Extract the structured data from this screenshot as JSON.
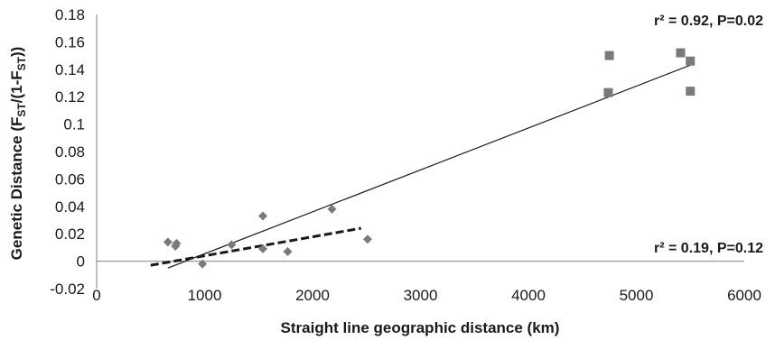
{
  "chart_data": {
    "type": "scatter",
    "xlabel": "Straight line geographic distance (km)",
    "ylabel": {
      "prefix": "Genetic Distance (F",
      "sub1": "ST",
      "mid": "/(1-F",
      "sub2": "ST",
      "suffix": "))"
    },
    "xlim": [
      0,
      6000
    ],
    "ylim": [
      -0.02,
      0.18
    ],
    "x_ticks": [
      "0",
      "1000",
      "2000",
      "3000",
      "4000",
      "5000",
      "6000"
    ],
    "y_ticks": [
      "-0.02",
      "0",
      "0.02",
      "0.04",
      "0.06",
      "0.08",
      "0.1",
      "0.12",
      "0.14",
      "0.16",
      "0.18"
    ],
    "grid": false,
    "series": [
      {
        "marker": "square",
        "color": "#7a7a7a",
        "points": [
          [
            4750,
            0.15
          ],
          [
            4740,
            0.123
          ],
          [
            5410,
            0.152
          ],
          [
            5500,
            0.146
          ],
          [
            5500,
            0.124
          ]
        ]
      },
      {
        "marker": "diamond",
        "color": "#7a7a7a",
        "points": [
          [
            660,
            0.014
          ],
          [
            730,
            0.011
          ],
          [
            740,
            0.013
          ],
          [
            980,
            -0.002
          ],
          [
            1250,
            0.012
          ],
          [
            1540,
            0.009
          ],
          [
            1540,
            0.033
          ],
          [
            1770,
            0.007
          ],
          [
            2180,
            0.038
          ],
          [
            2510,
            0.016
          ]
        ]
      }
    ],
    "trendlines": [
      {
        "style": "solid",
        "color": "#1a1a1a",
        "from": [
          660,
          -0.005
        ],
        "to": [
          5500,
          0.143
        ]
      },
      {
        "style": "dashed",
        "color": "#1a1a1a",
        "from": [
          500,
          -0.003
        ],
        "to": [
          2450,
          0.024
        ]
      }
    ],
    "annotations": [
      {
        "text": "r² = 0.92, P=0.02",
        "anchor": "top-right"
      },
      {
        "text": "r² = 0.19, P=0.12",
        "anchor": "bottom-right"
      }
    ]
  }
}
